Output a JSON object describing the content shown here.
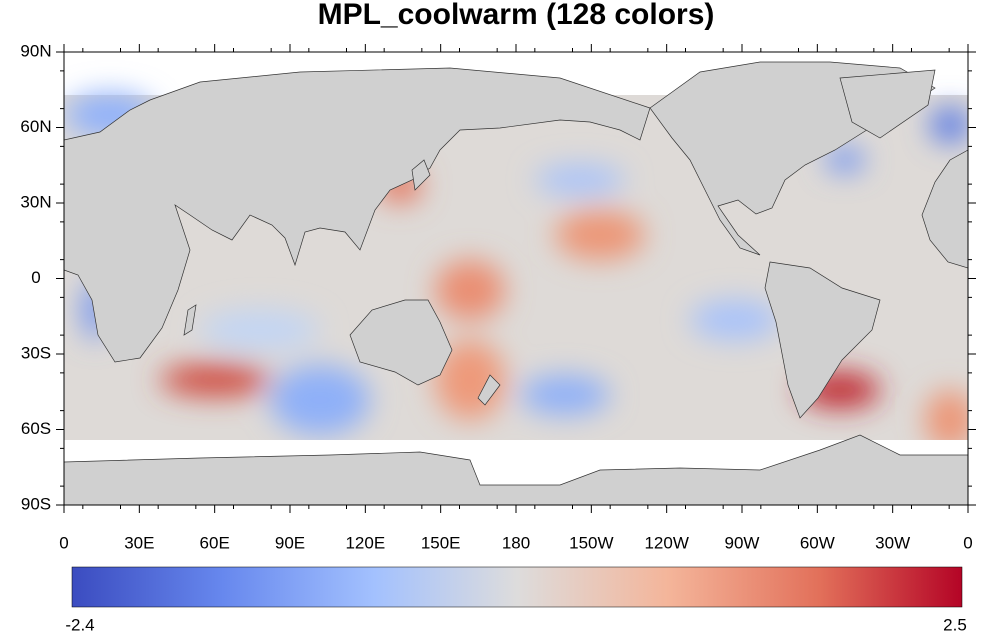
{
  "chart_data": {
    "type": "map",
    "title": "MPL_coolwarm (128 colors)",
    "xlim": [
      0,
      360
    ],
    "xticks": [
      0,
      {
        "value": 30,
        "label": "30E"
      },
      {
        "value": 60,
        "label": "60E"
      },
      {
        "value": 90,
        "label": "90E"
      },
      {
        "value": 120,
        "label": "120E"
      },
      {
        "value": 150,
        "label": "150E"
      },
      180,
      {
        "value": 210,
        "label": "150W"
      },
      {
        "value": 240,
        "label": "120W"
      },
      {
        "value": 270,
        "label": "90W"
      },
      {
        "value": 300,
        "label": "60W"
      },
      {
        "value": 330,
        "label": "30W"
      },
      {
        "value": 360,
        "label": "0"
      }
    ],
    "ylim": [
      -90,
      90
    ],
    "yticks": [
      {
        "value": -90,
        "label": "90S"
      },
      {
        "value": -60,
        "label": "60S"
      },
      {
        "value": -30,
        "label": "30S"
      },
      0,
      {
        "value": 30,
        "label": "30N"
      },
      {
        "value": 60,
        "label": "60N"
      },
      {
        "value": 90,
        "label": "90N"
      }
    ],
    "colorbar": {
      "lim": [
        -2.4,
        2.5
      ],
      "ticks": [
        -2.4,
        2.5
      ]
    }
  }
}
